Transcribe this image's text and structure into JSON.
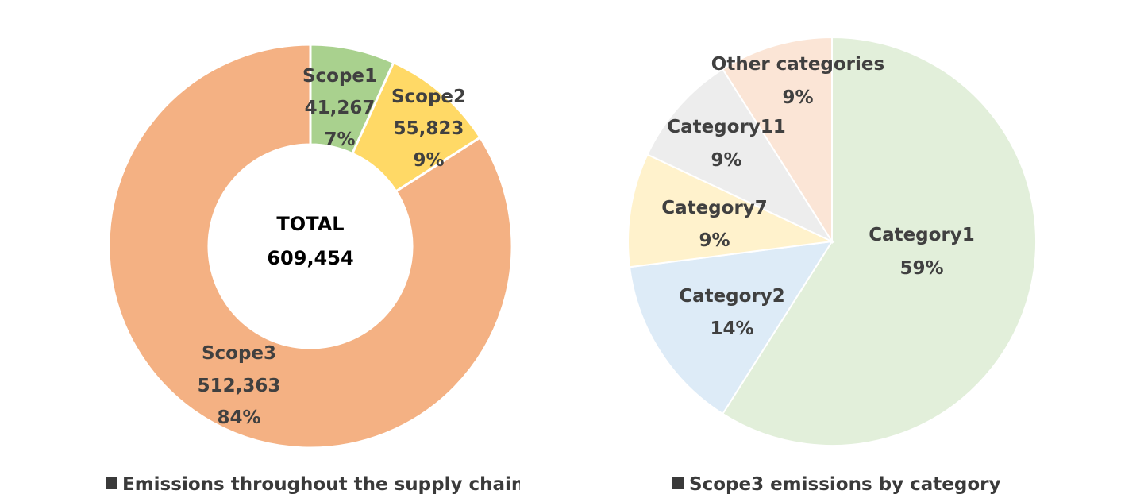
{
  "chart_data": [
    {
      "type": "pie",
      "variant": "donut",
      "title": "Emissions throughout the supply chain",
      "center_label": {
        "line1": "TOTAL",
        "line2": "609,454"
      },
      "slices": [
        {
          "label": "Scope1",
          "value": 41267,
          "value_label": "41,267",
          "percent_label": "7%",
          "color": "#a9d18e"
        },
        {
          "label": "Scope2",
          "value": 55823,
          "value_label": "55,823",
          "percent_label": "9%",
          "color": "#ffd966"
        },
        {
          "label": "Scope3",
          "value": 512363,
          "value_label": "512,363",
          "percent_label": "84%",
          "color": "#f4b183"
        }
      ]
    },
    {
      "type": "pie",
      "title": "Scope3 emissions by category",
      "slices": [
        {
          "label": "Category1",
          "value": 59,
          "percent_label": "59%",
          "color": "#e2efda"
        },
        {
          "label": "Category2",
          "value": 14,
          "percent_label": "14%",
          "color": "#ddebf7"
        },
        {
          "label": "Category7",
          "value": 9,
          "percent_label": "9%",
          "color": "#fff2cc"
        },
        {
          "label": "Category11",
          "value": 9,
          "percent_label": "9%",
          "color": "#ededed"
        },
        {
          "label": "Other categories",
          "value": 9,
          "percent_label": "9%",
          "color": "#fbe5d6"
        }
      ]
    }
  ]
}
